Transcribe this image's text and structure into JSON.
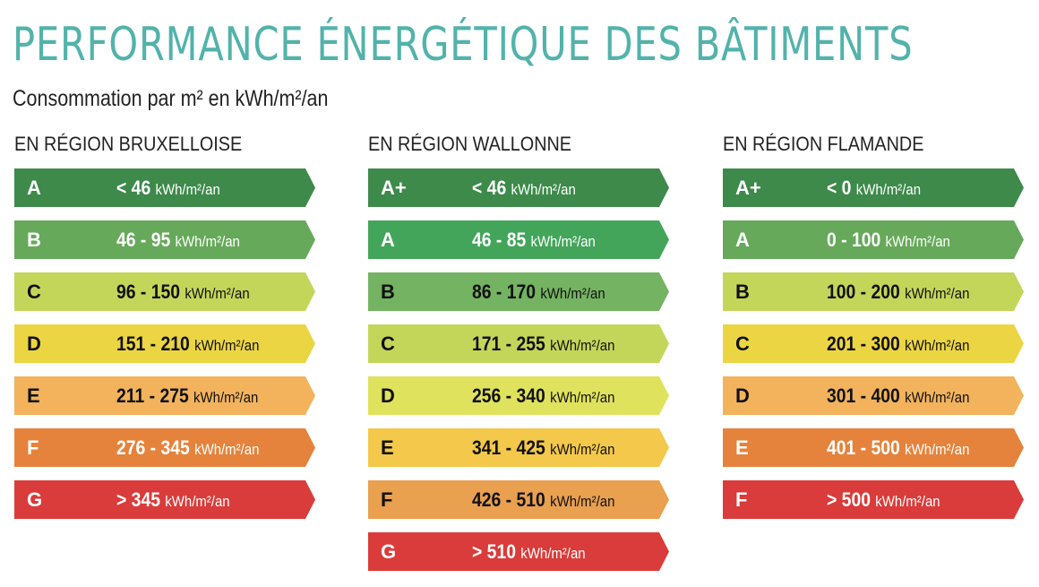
{
  "title": "PERFORMANCE ÉNERGÉTIQUE DES BÂTIMENTS",
  "subtitle": "Consommation par m² en kWh/m²/an",
  "regions": [
    {
      "name": "EN RÉGION BRUXELLOISE",
      "bars": [
        {
          "label": "A",
          "range": "< 46",
          "unit": "kWh/m²/an",
          "color": "#3d8a4a",
          "text": "light"
        },
        {
          "label": "B",
          "range": "46 - 95",
          "unit": "kWh/m²/an",
          "color": "#66a95a",
          "text": "light"
        },
        {
          "label": "C",
          "range": "96 - 150",
          "unit": "kWh/m²/an",
          "color": "#c4d65a",
          "text": "dark"
        },
        {
          "label": "D",
          "range": "151 - 210",
          "unit": "kWh/m²/an",
          "color": "#ecd543",
          "text": "dark"
        },
        {
          "label": "E",
          "range": "211 - 275",
          "unit": "kWh/m²/an",
          "color": "#f2b35c",
          "text": "dark"
        },
        {
          "label": "F",
          "range": "276 - 345",
          "unit": "kWh/m²/an",
          "color": "#e5833c",
          "text": "light"
        },
        {
          "label": "G",
          "range": "> 345",
          "unit": "kWh/m²/an",
          "color": "#d93c3a",
          "text": "light"
        }
      ]
    },
    {
      "name": "EN RÉGION WALLONNE",
      "bars": [
        {
          "label": "A+",
          "range": "< 46",
          "unit": "kWh/m²/an",
          "color": "#3d8a4a",
          "text": "light"
        },
        {
          "label": "A",
          "range": "46 - 85",
          "unit": "kWh/m²/an",
          "color": "#43a55a",
          "text": "light"
        },
        {
          "label": "B",
          "range": "86 - 170",
          "unit": "kWh/m²/an",
          "color": "#74b362",
          "text": "dark"
        },
        {
          "label": "C",
          "range": "171 - 255",
          "unit": "kWh/m²/an",
          "color": "#c4d65a",
          "text": "dark"
        },
        {
          "label": "D",
          "range": "256 - 340",
          "unit": "kWh/m²/an",
          "color": "#dfe25c",
          "text": "dark"
        },
        {
          "label": "E",
          "range": "341 - 425",
          "unit": "kWh/m²/an",
          "color": "#f4c84b",
          "text": "dark"
        },
        {
          "label": "F",
          "range": "426 - 510",
          "unit": "kWh/m²/an",
          "color": "#e9a04f",
          "text": "dark"
        },
        {
          "label": "G",
          "range": "> 510",
          "unit": "kWh/m²/an",
          "color": "#d93c3a",
          "text": "light"
        }
      ]
    },
    {
      "name": "EN RÉGION FLAMANDE",
      "bars": [
        {
          "label": "A+",
          "range": "< 0",
          "unit": "kWh/m²/an",
          "color": "#3d8a4a",
          "text": "light"
        },
        {
          "label": "A",
          "range": "0 - 100",
          "unit": "kWh/m²/an",
          "color": "#66a95a",
          "text": "light"
        },
        {
          "label": "B",
          "range": "100 - 200",
          "unit": "kWh/m²/an",
          "color": "#c4d65a",
          "text": "dark"
        },
        {
          "label": "C",
          "range": "201 - 300",
          "unit": "kWh/m²/an",
          "color": "#ecd543",
          "text": "dark"
        },
        {
          "label": "D",
          "range": "301 - 400",
          "unit": "kWh/m²/an",
          "color": "#f2b35c",
          "text": "dark"
        },
        {
          "label": "E",
          "range": "401 - 500",
          "unit": "kWh/m²/an",
          "color": "#e5833c",
          "text": "light"
        },
        {
          "label": "F",
          "range": "> 500",
          "unit": "kWh/m²/an",
          "color": "#d93c3a",
          "text": "light"
        }
      ]
    }
  ]
}
